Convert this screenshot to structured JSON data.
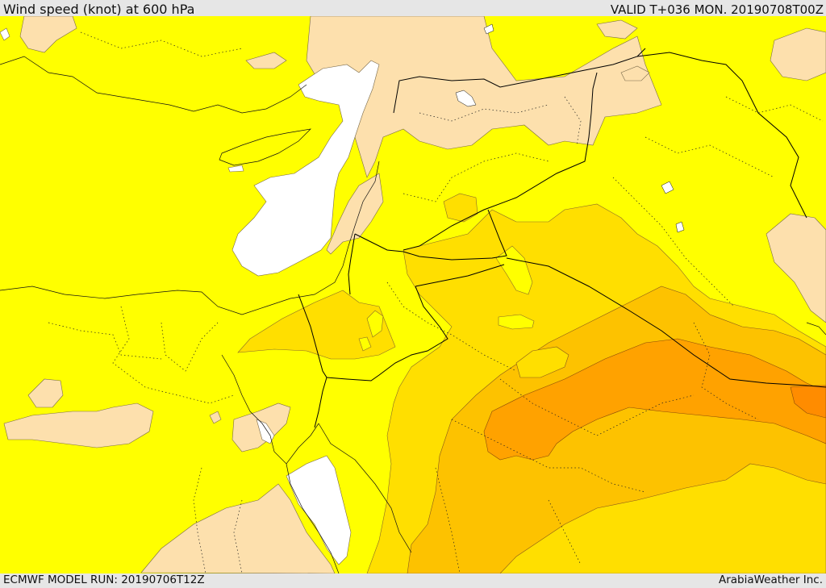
{
  "header": {
    "title": "Wind speed (knot) at 600 hPa",
    "valid": "VALID T+036 MON. 20190708T00Z"
  },
  "footer": {
    "model_run": "ECMWF MODEL RUN: 20190706T12Z",
    "credit": "ArabiaWeather Inc."
  },
  "colors": {
    "calm_white": "#ffffff",
    "light_tan": "#fde0ad",
    "yellow": "#ffff00",
    "gold": "#ffdf00",
    "light_orange": "#fdc200",
    "orange": "#ffa200",
    "deep_orange": "#ff8c00",
    "border": "#000000",
    "background": "#e6e6e6"
  }
}
